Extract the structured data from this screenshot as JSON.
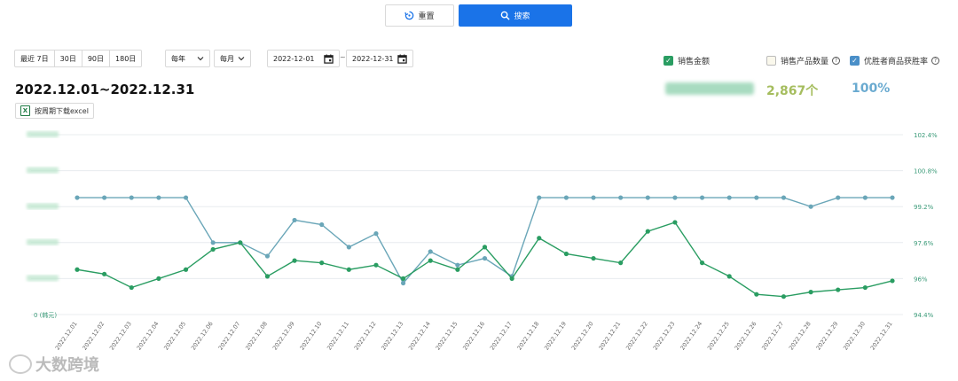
{
  "toolbar": {
    "reset_label": "重置",
    "search_label": "搜索"
  },
  "filters": {
    "ranges": [
      "最近 7日",
      "30日",
      "90日",
      "180日"
    ],
    "period_a": "每年",
    "period_b": "每月",
    "date_from": "2022-12-01",
    "date_to": "2022-12-31",
    "separator": "~"
  },
  "header": {
    "title": "2022.12.01~2022.12.31",
    "excel_label": "按周期下载excel"
  },
  "metrics": {
    "m1_label": "销售金额",
    "m2_label": "销售产品数量",
    "m3_label": "优胜者商品获胜率",
    "m2_value": "2,867个",
    "m3_value": "100%"
  },
  "colors": {
    "sales": "#2a9d62",
    "win_rate": "#6aa6b8",
    "quantity": "#a5bd5e",
    "rate_text": "#6aaad0",
    "primary_button": "#1a73e8"
  },
  "watermark": "大数跨境",
  "chart_data": {
    "type": "line",
    "categories": [
      "2022.12.01",
      "2022.12.02",
      "2022.12.03",
      "2022.12.04",
      "2022.12.05",
      "2022.12.06",
      "2022.12.07",
      "2022.12.08",
      "2022.12.09",
      "2022.12.10",
      "2022.12.11",
      "2022.12.12",
      "2022.12.13",
      "2022.12.14",
      "2022.12.15",
      "2022.12.16",
      "2022.12.17",
      "2022.12.18",
      "2022.12.19",
      "2022.12.20",
      "2022.12.21",
      "2022.12.22",
      "2022.12.23",
      "2022.12.24",
      "2022.12.25",
      "2022.12.26",
      "2022.12.27",
      "2022.12.28",
      "2022.12.29",
      "2022.12.30",
      "2022.12.31"
    ],
    "left_axis": {
      "label": "0 (韩元)",
      "values_blurred": true
    },
    "right_axis": {
      "ticks": [
        "94.4%",
        "96%",
        "97.6%",
        "99.2%",
        "100.8%",
        "102.4%"
      ],
      "ylim": [
        94.4,
        102.4
      ]
    },
    "series": [
      {
        "axis": "right",
        "values": [
          99.6,
          99.6,
          99.6,
          99.6,
          99.6,
          97.6,
          97.6,
          97.0,
          98.6,
          98.4,
          97.4,
          98.0,
          95.8,
          97.2,
          96.6,
          96.9,
          96.1,
          99.6,
          99.6,
          99.6,
          99.6,
          99.6,
          99.6,
          99.6,
          99.6,
          99.6,
          99.6,
          99.2,
          99.6,
          99.6,
          99.6
        ]
      },
      {
        "axis": "right",
        "values": [
          96.4,
          96.2,
          95.6,
          96.0,
          96.4,
          97.3,
          97.6,
          96.1,
          96.8,
          96.7,
          96.4,
          96.6,
          96.0,
          96.8,
          96.4,
          97.4,
          96.0,
          97.8,
          97.1,
          96.9,
          96.7,
          98.1,
          98.5,
          96.7,
          96.1,
          95.3,
          95.2,
          95.4,
          95.5,
          95.6,
          95.9
        ]
      }
    ]
  }
}
